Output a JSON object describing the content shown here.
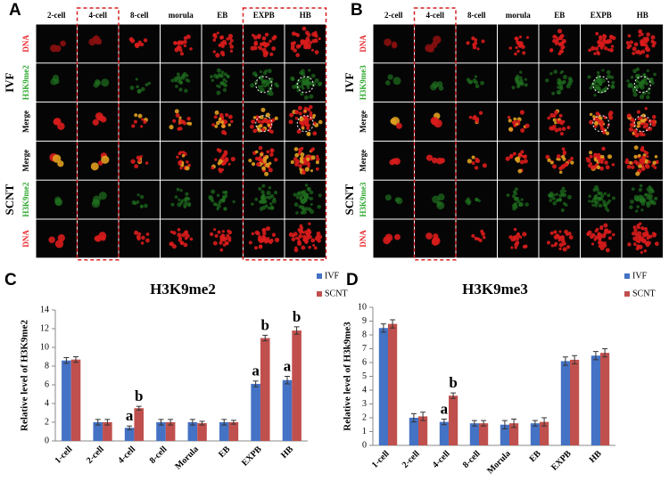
{
  "panels": [
    {
      "label": "A",
      "columns": [
        "2-cell",
        "4-cell",
        "8-cell",
        "morula",
        "EB",
        "EXPB",
        "HB"
      ],
      "rows": [
        "DNA",
        "H3K9me2",
        "Merge",
        "Merge",
        "H3K9me2",
        "DNA"
      ],
      "groups": [
        "IVF",
        "SCNT"
      ]
    },
    {
      "label": "B",
      "columns": [
        "2-cell",
        "4-cell",
        "8-cell",
        "morula",
        "EB",
        "EXPB",
        "HB"
      ],
      "rows": [
        "DNA",
        "H3K9me3",
        "Merge",
        "Merge",
        "H3K9me3",
        "DNA"
      ],
      "groups": [
        "IVF",
        "SCNT"
      ]
    }
  ],
  "chart_data": [
    {
      "type": "bar",
      "panel_label": "C",
      "title": "H3K9me2",
      "y_label": "Relative level of H3K9me2",
      "categories": [
        "1-cell",
        "2-cell",
        "4-cell",
        "8-cell",
        "Morula",
        "EB",
        "EXPB",
        "HB"
      ],
      "series": [
        {
          "name": "IVF",
          "color": "#4472c4",
          "values": [
            8.6,
            2.0,
            1.4,
            2.0,
            2.0,
            2.0,
            6.1,
            6.5
          ],
          "errors": [
            0.3,
            0.3,
            0.2,
            0.3,
            0.3,
            0.3,
            0.3,
            0.4
          ],
          "letters": [
            null,
            null,
            "a",
            null,
            null,
            null,
            "a",
            "a"
          ]
        },
        {
          "name": "SCNT",
          "color": "#c0504d",
          "values": [
            8.7,
            2.0,
            3.5,
            2.0,
            1.9,
            2.0,
            11.0,
            11.8
          ],
          "errors": [
            0.3,
            0.3,
            0.2,
            0.3,
            0.2,
            0.2,
            0.3,
            0.4
          ],
          "letters": [
            null,
            null,
            "b",
            null,
            null,
            null,
            "b",
            "b"
          ]
        }
      ],
      "ylim": [
        0,
        14
      ],
      "yticks": [
        0,
        2,
        4,
        6,
        8,
        10,
        12,
        14
      ],
      "legend": "top-right"
    },
    {
      "type": "bar",
      "panel_label": "D",
      "title": "H3K9me3",
      "y_label": "Relative level of H3k9me3",
      "categories": [
        "1-cell",
        "2-cell",
        "4-cell",
        "8-cell",
        "Morula",
        "EB",
        "EXPB",
        "HB"
      ],
      "series": [
        {
          "name": "IVF",
          "color": "#4472c4",
          "values": [
            8.5,
            2.0,
            1.7,
            1.6,
            1.5,
            1.6,
            6.1,
            6.5
          ],
          "errors": [
            0.3,
            0.3,
            0.2,
            0.2,
            0.3,
            0.2,
            0.3,
            0.3
          ],
          "letters": [
            null,
            null,
            "a",
            null,
            null,
            null,
            null,
            null
          ]
        },
        {
          "name": "SCNT",
          "color": "#c0504d",
          "values": [
            8.8,
            2.1,
            3.6,
            1.6,
            1.6,
            1.7,
            6.2,
            6.7
          ],
          "errors": [
            0.3,
            0.3,
            0.2,
            0.2,
            0.3,
            0.3,
            0.3,
            0.3
          ],
          "letters": [
            null,
            null,
            "b",
            null,
            null,
            null,
            null,
            null
          ]
        }
      ],
      "ylim": [
        0,
        10
      ],
      "yticks": [
        0,
        1,
        2,
        3,
        4,
        5,
        6,
        7,
        8,
        9,
        10
      ],
      "legend": "top-right"
    }
  ]
}
